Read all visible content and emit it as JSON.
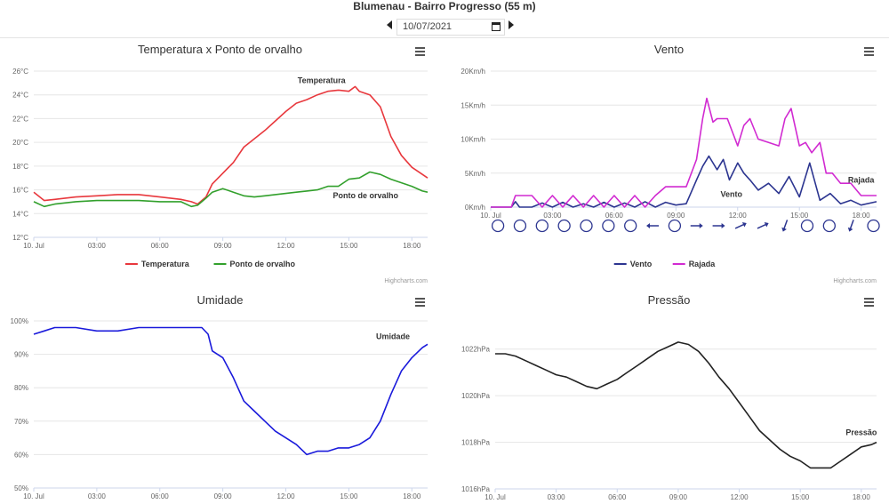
{
  "station": {
    "title": "Blumenau - Bairro Progresso (55 m)"
  },
  "datebar": {
    "value": "10/07/2021"
  },
  "credit": "Highcharts.com",
  "chart_data": [
    {
      "type": "line",
      "title": "Temperatura x Ponto de orvalho",
      "x_labels": [
        "10. Jul",
        "03:00",
        "06:00",
        "09:00",
        "12:00",
        "15:00",
        "18:00"
      ],
      "y_labels": [
        "12°C",
        "14°C",
        "16°C",
        "18°C",
        "20°C",
        "22°C",
        "24°C",
        "26°C"
      ],
      "ylim": [
        12,
        26
      ],
      "xlim_hours": [
        0,
        18.75
      ],
      "series": [
        {
          "name": "Temperatura",
          "color": "#e8383d",
          "x": [
            0,
            0.5,
            1,
            2,
            3,
            4,
            5,
            6,
            7,
            7.5,
            7.8,
            8.2,
            8.5,
            9,
            9.5,
            10,
            10.5,
            11,
            11.5,
            12,
            12.5,
            13,
            13.5,
            14,
            14.5,
            15,
            15.3,
            15.5,
            16,
            16.5,
            17,
            17.5,
            18,
            18.5,
            18.75
          ],
          "y": [
            15.8,
            15.1,
            15.2,
            15.4,
            15.5,
            15.6,
            15.6,
            15.4,
            15.2,
            15.0,
            14.8,
            15.4,
            16.5,
            17.4,
            18.3,
            19.6,
            20.3,
            21.0,
            21.8,
            22.6,
            23.3,
            23.6,
            24.0,
            24.3,
            24.4,
            24.3,
            24.7,
            24.3,
            24.0,
            23.0,
            20.5,
            18.9,
            17.9,
            17.3,
            17.0
          ]
        },
        {
          "name": "Ponto de orvalho",
          "color": "#32a02c",
          "x": [
            0,
            0.5,
            1,
            2,
            3,
            4,
            5,
            6,
            7,
            7.5,
            7.8,
            8.2,
            8.5,
            9,
            9.5,
            10,
            10.5,
            11,
            11.5,
            12,
            12.5,
            13,
            13.5,
            14,
            14.5,
            15,
            15.5,
            16,
            16.5,
            17,
            17.5,
            18,
            18.5,
            18.75
          ],
          "y": [
            15.0,
            14.6,
            14.8,
            15.0,
            15.1,
            15.1,
            15.1,
            15.0,
            15.0,
            14.6,
            14.7,
            15.3,
            15.8,
            16.1,
            15.8,
            15.5,
            15.4,
            15.5,
            15.6,
            15.7,
            15.8,
            15.9,
            16.0,
            16.3,
            16.3,
            16.9,
            17.0,
            17.5,
            17.3,
            16.9,
            16.6,
            16.3,
            15.9,
            15.8
          ]
        }
      ],
      "legend": [
        "Temperatura",
        "Ponto de orvalho"
      ]
    },
    {
      "type": "line",
      "title": "Vento",
      "x_labels": [
        "10. Jul",
        "03:00",
        "06:00",
        "09:00",
        "12:00",
        "15:00",
        "18:00"
      ],
      "y_labels": [
        "0Km/h",
        "5Km/h",
        "10Km/h",
        "15Km/h",
        "20Km/h"
      ],
      "ylim": [
        0,
        20
      ],
      "xlim_hours": [
        0,
        18.75
      ],
      "series": [
        {
          "name": "Vento",
          "color": "#2c3590",
          "x": [
            0,
            1,
            1.2,
            1.4,
            2,
            2.5,
            3,
            3.5,
            4,
            4.5,
            5,
            5.5,
            6,
            6.5,
            7,
            7.5,
            8,
            8.5,
            9,
            9.5,
            10,
            10.3,
            10.6,
            11,
            11.3,
            11.6,
            12,
            12.3,
            12.6,
            13,
            13.5,
            14,
            14.5,
            15,
            15.5,
            16,
            16.5,
            17,
            17.5,
            18,
            18.75
          ],
          "y": [
            0,
            0,
            0.8,
            0,
            0,
            0.6,
            0,
            0.7,
            0,
            0.5,
            0,
            0.7,
            0,
            0.6,
            0,
            0.8,
            0,
            0.7,
            0.3,
            0.5,
            4.0,
            6.0,
            7.5,
            5.5,
            7.0,
            4.0,
            6.5,
            5.0,
            4.0,
            2.5,
            3.5,
            2.0,
            4.5,
            1.5,
            6.5,
            1.0,
            2.0,
            0.5,
            1.0,
            0.3,
            0.8
          ]
        },
        {
          "name": "Rajada",
          "color": "#d12ad1",
          "x": [
            0,
            1,
            1.2,
            2,
            2.5,
            3,
            3.5,
            4,
            4.5,
            5,
            5.5,
            6,
            6.5,
            7,
            7.5,
            8,
            8.5,
            9,
            9.5,
            10,
            10.3,
            10.5,
            10.8,
            11,
            11.5,
            12,
            12.3,
            12.6,
            13,
            13.5,
            14,
            14.3,
            14.6,
            15,
            15.3,
            15.6,
            16,
            16.3,
            16.6,
            17,
            17.5,
            18,
            18.75
          ],
          "y": [
            0,
            0,
            1.7,
            1.7,
            0,
            1.7,
            0,
            1.7,
            0,
            1.7,
            0,
            1.7,
            0,
            1.7,
            0,
            1.7,
            3.0,
            3.0,
            3.0,
            7.0,
            13.0,
            16.0,
            12.5,
            13.0,
            13.0,
            9.0,
            12.0,
            13.0,
            10.0,
            9.5,
            9.0,
            13.0,
            14.5,
            9.0,
            9.5,
            8.0,
            9.5,
            5.0,
            5.0,
            3.5,
            3.5,
            1.7,
            1.7
          ]
        }
      ],
      "direction_row": [
        "circle",
        "circle",
        "circle",
        "circle",
        "circle",
        "circle",
        "circle",
        "arrow-w",
        "circle",
        "arrow-e",
        "arrow-e",
        "arrow-ne",
        "arrow-ne",
        "arrow-s",
        "circle",
        "circle",
        "arrow-s",
        "circle"
      ],
      "legend": [
        "Vento",
        "Rajada"
      ]
    },
    {
      "type": "line",
      "title": "Umidade",
      "x_labels": [
        "10. Jul",
        "03:00",
        "06:00",
        "09:00",
        "12:00",
        "15:00",
        "18:00"
      ],
      "y_labels": [
        "50%",
        "60%",
        "70%",
        "80%",
        "90%",
        "100%"
      ],
      "ylim": [
        50,
        100
      ],
      "xlim_hours": [
        0,
        18.75
      ],
      "series": [
        {
          "name": "Umidade",
          "color": "#1a1adb",
          "x": [
            0,
            0.5,
            1,
            2,
            3,
            4,
            5,
            6,
            7,
            8,
            8.3,
            8.5,
            9,
            9.5,
            10,
            10.5,
            11,
            11.5,
            12,
            12.5,
            13,
            13.5,
            14,
            14.5,
            15,
            15.5,
            16,
            16.5,
            17,
            17.5,
            18,
            18.5,
            18.75
          ],
          "y": [
            96,
            97,
            98,
            98,
            97,
            97,
            98,
            98,
            98,
            98,
            96,
            91,
            89,
            83,
            76,
            73,
            70,
            67,
            65,
            63,
            60,
            61,
            61,
            62,
            62,
            63,
            65,
            70,
            78,
            85,
            89,
            92,
            93
          ]
        }
      ],
      "legend": [
        "Umidade"
      ]
    },
    {
      "type": "line",
      "title": "Pressão",
      "x_labels": [
        "10. Jul",
        "03:00",
        "06:00",
        "09:00",
        "12:00",
        "15:00",
        "18:00"
      ],
      "y_labels": [
        "1016hPa",
        "1018hPa",
        "1020hPa",
        "1022hPa"
      ],
      "ylim": [
        1016,
        1022.6
      ],
      "xlim_hours": [
        0,
        18.75
      ],
      "series": [
        {
          "name": "Pressão",
          "color": "#222222",
          "x": [
            0,
            0.5,
            1,
            1.5,
            2,
            2.5,
            3,
            3.5,
            4,
            4.5,
            5,
            5.5,
            6,
            6.5,
            7,
            7.5,
            8,
            8.5,
            9,
            9.5,
            10,
            10.5,
            11,
            11.5,
            12,
            12.5,
            13,
            13.5,
            14,
            14.5,
            15,
            15.5,
            16,
            16.5,
            17,
            17.5,
            18,
            18.5,
            18.75
          ],
          "y": [
            1021.8,
            1021.8,
            1021.7,
            1021.5,
            1021.3,
            1021.1,
            1020.9,
            1020.8,
            1020.6,
            1020.4,
            1020.3,
            1020.5,
            1020.7,
            1021.0,
            1021.3,
            1021.6,
            1021.9,
            1022.1,
            1022.3,
            1022.2,
            1021.9,
            1021.4,
            1020.8,
            1020.3,
            1019.7,
            1019.1,
            1018.5,
            1018.1,
            1017.7,
            1017.4,
            1017.2,
            1016.9,
            1016.9,
            1016.9,
            1017.2,
            1017.5,
            1017.8,
            1017.9,
            1018.0
          ]
        }
      ],
      "legend": [
        "Pressão"
      ]
    }
  ]
}
